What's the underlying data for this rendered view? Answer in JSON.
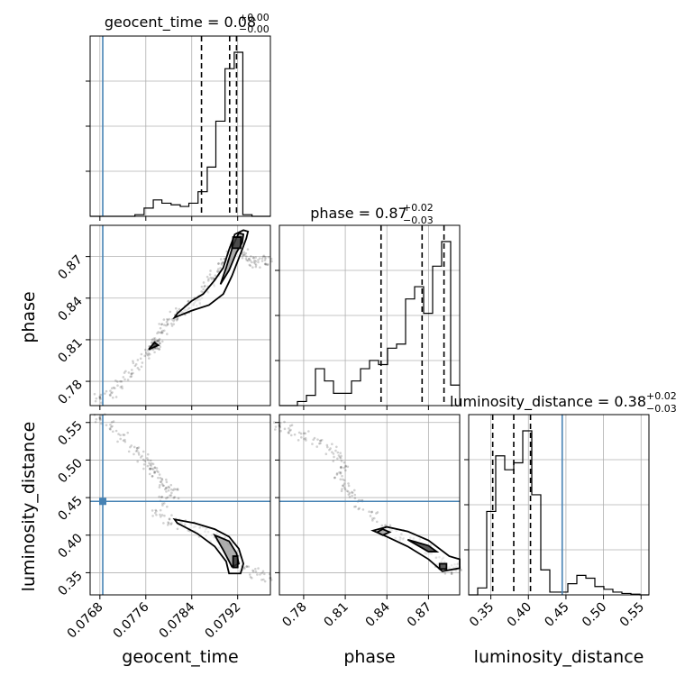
{
  "figure": {
    "titles": {
      "geocent_time": {
        "name": "geocent_time",
        "value": "0.08",
        "plus": "+0.00",
        "minus": "−0.00"
      },
      "phase": {
        "name": "phase",
        "value": "0.87",
        "plus": "+0.02",
        "minus": "−0.03"
      },
      "luminosity_distance": {
        "name": "luminosity_distance",
        "value": "0.38",
        "plus": "+0.02",
        "minus": "−0.03"
      }
    },
    "axis_labels": {
      "x_geocent_time": "geocent_time",
      "x_phase": "phase",
      "x_luminosity_distance": "luminosity_distance",
      "y_phase": "phase",
      "y_luminosity_distance": "luminosity_distance"
    },
    "colors": {
      "truth": "#4682b4",
      "hist": "#000000",
      "grid": "#b0b0b0",
      "samples": "#000000"
    }
  },
  "chart_data": {
    "type": "corner",
    "grid": true,
    "parameters": [
      "geocent_time",
      "phase",
      "luminosity_distance"
    ],
    "ranges": {
      "geocent_time": [
        0.07663,
        0.07977
      ],
      "phase": [
        0.7625,
        0.8925
      ],
      "luminosity_distance": [
        0.3205,
        0.5605
      ]
    },
    "ticks": {
      "geocent_time": [
        "0.0768",
        "0.0776",
        "0.0784",
        "0.0792"
      ],
      "phase": [
        "0.78",
        "0.81",
        "0.84",
        "0.87"
      ],
      "luminosity_distance": [
        "0.35",
        "0.40",
        "0.45",
        "0.50",
        "0.55"
      ]
    },
    "truths": {
      "geocent_time": 0.07685,
      "phase": null,
      "luminosity_distance": 0.445
    },
    "quantiles": {
      "geocent_time": [
        0.07857,
        0.07906,
        0.07918
      ],
      "phase": [
        0.8358,
        0.8654,
        0.8812
      ],
      "luminosity_distance": [
        0.3525,
        0.3805,
        0.4028
      ]
    },
    "histograms": {
      "geocent_time": {
        "edges": [
          0.07663,
          0.07679,
          0.07694,
          0.0771,
          0.07726,
          0.07741,
          0.07757,
          0.07773,
          0.07788,
          0.07804,
          0.0782,
          0.07835,
          0.07851,
          0.07867,
          0.07882,
          0.07898,
          0.07914,
          0.07929,
          0.07945,
          0.07961,
          0.07977
        ],
        "counts": [
          0,
          0,
          0,
          0,
          0,
          0.01,
          0.05,
          0.1,
          0.08,
          0.07,
          0.06,
          0.08,
          0.15,
          0.3,
          0.58,
          0.9,
          1.0,
          0.01,
          0,
          0
        ]
      },
      "phase": {
        "edges": [
          0.7625,
          0.769,
          0.7755,
          0.782,
          0.7885,
          0.795,
          0.8015,
          0.808,
          0.8145,
          0.821,
          0.8275,
          0.834,
          0.8405,
          0.847,
          0.8535,
          0.86,
          0.8665,
          0.873,
          0.8795,
          0.886,
          0.8925
        ],
        "counts": [
          0,
          0,
          0.02,
          0.05,
          0.18,
          0.12,
          0.06,
          0.06,
          0.12,
          0.18,
          0.22,
          0.2,
          0.28,
          0.3,
          0.52,
          0.58,
          0.45,
          0.68,
          0.8,
          0.1
        ]
      },
      "luminosity_distance": {
        "edges": [
          0.3205,
          0.3325,
          0.3445,
          0.3565,
          0.3685,
          0.3805,
          0.3925,
          0.4045,
          0.4165,
          0.4285,
          0.4405,
          0.4525,
          0.4645,
          0.4765,
          0.4885,
          0.5005,
          0.5125,
          0.5245,
          0.5365,
          0.5485,
          0.5605
        ],
        "counts": [
          0,
          0.05,
          0.6,
          1.0,
          0.9,
          0.95,
          1.18,
          0.72,
          0.18,
          0.02,
          0.02,
          0.08,
          0.14,
          0.12,
          0.06,
          0.04,
          0.02,
          0.01,
          0.005,
          0
        ]
      }
    },
    "samples": {
      "phase_vs_geocent_time": {
        "x": [
          0.0768,
          0.077,
          0.07715,
          0.0773,
          0.07745,
          0.0776,
          0.0777,
          0.07775,
          0.07778,
          0.0778,
          0.07782,
          0.0779,
          0.078,
          0.0781,
          0.0782,
          0.0783,
          0.0784,
          0.0785,
          0.0786,
          0.0787,
          0.0788,
          0.0789,
          0.079,
          0.0791,
          0.0792,
          0.0793,
          0.0794,
          0.0795,
          0.0796,
          0.0797
        ],
        "y": [
          0.768,
          0.772,
          0.778,
          0.785,
          0.792,
          0.8,
          0.803,
          0.806,
          0.807,
          0.808,
          0.812,
          0.818,
          0.823,
          0.827,
          0.829,
          0.832,
          0.835,
          0.839,
          0.845,
          0.852,
          0.857,
          0.862,
          0.868,
          0.875,
          0.88,
          0.872,
          0.868,
          0.866,
          0.866,
          0.867
        ]
      },
      "luminosity_distance_vs_geocent_time": {
        "x": [
          0.0768,
          0.077,
          0.0772,
          0.0774,
          0.07755,
          0.07765,
          0.0777,
          0.0778,
          0.0779,
          0.078,
          0.0781,
          0.0779,
          0.0778,
          0.078,
          0.0782,
          0.0784,
          0.0786,
          0.0788,
          0.07895,
          0.07905,
          0.07915,
          0.0792,
          0.0793,
          0.0795,
          0.0797
        ],
        "y": [
          0.555,
          0.545,
          0.53,
          0.515,
          0.505,
          0.495,
          0.488,
          0.48,
          0.47,
          0.462,
          0.455,
          0.445,
          0.43,
          0.42,
          0.415,
          0.41,
          0.405,
          0.398,
          0.39,
          0.385,
          0.375,
          0.365,
          0.358,
          0.35,
          0.345
        ]
      },
      "luminosity_distance_vs_phase": {
        "x": [
          0.7625,
          0.77,
          0.78,
          0.79,
          0.8,
          0.805,
          0.808,
          0.806,
          0.81,
          0.815,
          0.82,
          0.83,
          0.84,
          0.85,
          0.86,
          0.87,
          0.878,
          0.885,
          0.89
        ],
        "y": [
          0.545,
          0.54,
          0.532,
          0.525,
          0.515,
          0.505,
          0.49,
          0.478,
          0.465,
          0.455,
          0.44,
          0.425,
          0.41,
          0.4,
          0.39,
          0.38,
          0.365,
          0.355,
          0.355
        ]
      }
    },
    "contours": {
      "phase_vs_geocent_time": [
        {
          "x": [
            0.0781,
            0.0784,
            0.0787,
            0.07895,
            0.0791,
            0.07925,
            0.07935,
            0.07938,
            0.0793,
            0.07915,
            0.07905,
            0.07895,
            0.0788,
            0.0786,
            0.0784,
            0.07815,
            0.0781
          ],
          "y": [
            0.826,
            0.831,
            0.835,
            0.843,
            0.856,
            0.872,
            0.883,
            0.888,
            0.889,
            0.886,
            0.875,
            0.862,
            0.853,
            0.843,
            0.838,
            0.829,
            0.826
          ]
        },
        {
          "x": [
            0.0789,
            0.07905,
            0.07918,
            0.07928,
            0.0793,
            0.07922,
            0.07912,
            0.079,
            0.0789
          ],
          "y": [
            0.85,
            0.86,
            0.873,
            0.88,
            0.886,
            0.887,
            0.878,
            0.862,
            0.85
          ]
        },
        {
          "x": [
            0.0791,
            0.07925,
            0.07926,
            0.07912,
            0.0791
          ],
          "y": [
            0.876,
            0.876,
            0.884,
            0.884,
            0.876
          ]
        },
        {
          "x": [
            0.07765,
            0.07782,
            0.07775,
            0.07765
          ],
          "y": [
            0.803,
            0.806,
            0.808,
            0.803
          ]
        }
      ],
      "luminosity_distance_vs_geocent_time": [
        {
          "x": [
            0.0781,
            0.07845,
            0.0788,
            0.07905,
            0.07922,
            0.0793,
            0.07925,
            0.07905,
            0.079,
            0.0788,
            0.0785,
            0.07815,
            0.0781
          ],
          "y": [
            0.421,
            0.416,
            0.408,
            0.398,
            0.382,
            0.362,
            0.349,
            0.349,
            0.365,
            0.385,
            0.402,
            0.416,
            0.421
          ]
        },
        {
          "x": [
            0.0788,
            0.07905,
            0.07918,
            0.07922,
            0.0791,
            0.07895,
            0.0788
          ],
          "y": [
            0.4,
            0.392,
            0.376,
            0.362,
            0.358,
            0.38,
            0.4
          ]
        },
        {
          "x": [
            0.07912,
            0.0792,
            0.0792,
            0.07912,
            0.07912
          ],
          "y": [
            0.357,
            0.357,
            0.372,
            0.372,
            0.357
          ]
        }
      ],
      "luminosity_distance_vs_phase": [
        {
          "x": [
            0.83,
            0.84,
            0.855,
            0.87,
            0.885,
            0.8925,
            0.8925,
            0.88,
            0.87,
            0.855,
            0.84,
            0.83
          ],
          "y": [
            0.406,
            0.411,
            0.405,
            0.393,
            0.372,
            0.368,
            0.356,
            0.352,
            0.368,
            0.385,
            0.398,
            0.406
          ]
        },
        {
          "x": [
            0.837,
            0.842,
            0.837,
            0.833,
            0.837
          ],
          "y": [
            0.4,
            0.404,
            0.408,
            0.404,
            0.4
          ]
        },
        {
          "x": [
            0.855,
            0.87,
            0.876,
            0.87,
            0.855
          ],
          "y": [
            0.394,
            0.386,
            0.378,
            0.378,
            0.394
          ]
        },
        {
          "x": [
            0.878,
            0.883,
            0.883,
            0.878,
            0.878
          ],
          "y": [
            0.355,
            0.355,
            0.362,
            0.362,
            0.355
          ]
        }
      ]
    }
  }
}
